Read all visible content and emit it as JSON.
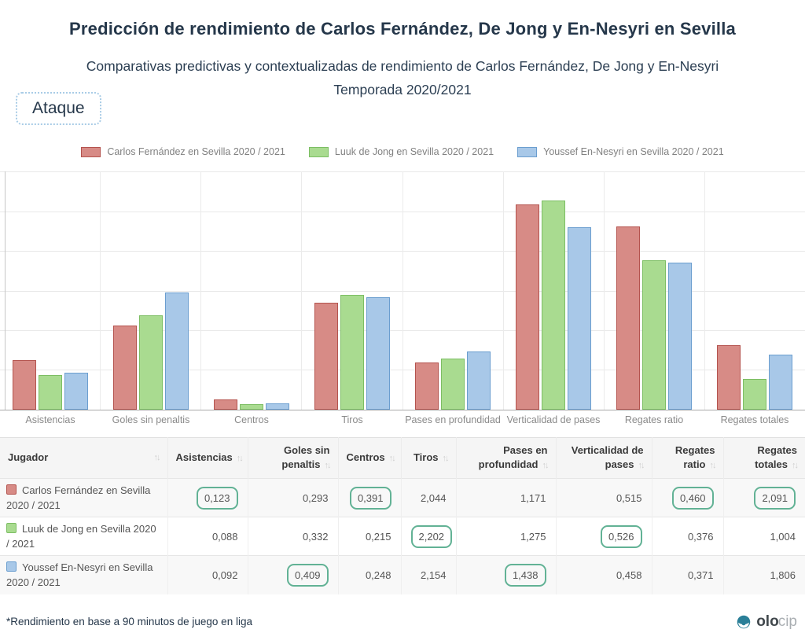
{
  "header": {
    "title": "Predicción de rendimiento de Carlos Fernández, De Jong y En-Nesyri en Sevilla",
    "subtitle_line1": "Comparativas predictivas y contextualizadas de rendimiento de Carlos Fernández, De Jong y En-Nesyri",
    "subtitle_line2": "Temporada 2020/2021",
    "category_tag": "Ataque"
  },
  "chart_data": {
    "type": "bar",
    "title": "",
    "xlabel": "",
    "ylabel": "",
    "grid": true,
    "legend_position": "top",
    "y_axis_labels_visible": false,
    "note": "Bar heights are normalized per metric (no y-axis tick labels shown); exact per-90 values are in the table below. height_pct = bar height as % of plot height.",
    "categories": [
      "Asistencias",
      "Goles sin penaltis",
      "Centros",
      "Tiros",
      "Pases en profundidad",
      "Verticalidad de pases",
      "Regates ratio",
      "Regates totales"
    ],
    "series": [
      {
        "name": "Carlos Fernández en Sevilla 2020 / 2021",
        "fill": "#D78B86",
        "border": "#B4534E",
        "values": [
          0.123,
          0.293,
          0.391,
          2.044,
          1.171,
          0.515,
          0.46,
          2.091
        ],
        "height_pct": [
          20.8,
          35.3,
          4.3,
          44.9,
          19.8,
          86.1,
          76.9,
          27.1
        ]
      },
      {
        "name": "Luuk de Jong en Sevilla 2020 / 2021",
        "fill": "#A9DB90",
        "border": "#7CBE63",
        "values": [
          0.088,
          0.332,
          0.215,
          2.202,
          1.275,
          0.526,
          0.376,
          1.004
        ],
        "height_pct": [
          14.5,
          39.6,
          2.3,
          48.2,
          21.5,
          87.8,
          62.7,
          12.9
        ]
      },
      {
        "name": "Youssef En-Nesyri en Sevilla 2020 / 2021",
        "fill": "#A8C8E8",
        "border": "#6B9ECF",
        "values": [
          0.092,
          0.409,
          0.248,
          2.154,
          1.438,
          0.458,
          0.371,
          1.806
        ],
        "height_pct": [
          15.5,
          49.2,
          2.7,
          47.2,
          24.4,
          76.6,
          61.7,
          23.1
        ]
      }
    ]
  },
  "table": {
    "sort_glyph": "↑↓",
    "columns": [
      "Jugador",
      "Asistencias",
      "Goles sin penaltis",
      "Centros",
      "Tiros",
      "Pases en profundidad",
      "Verticalidad de pases",
      "Regates ratio",
      "Regates totales"
    ],
    "rows": [
      {
        "player": "Carlos Fernández en Sevilla 2020 / 2021",
        "color": "#D78B86",
        "border": "#B4534E",
        "values": [
          "0,123",
          "0,293",
          "0,391",
          "2,044",
          "1,171",
          "0,515",
          "0,460",
          "2,091"
        ],
        "highlighted_columns": [
          "Asistencias",
          "Centros",
          "Regates ratio",
          "Regates totales"
        ]
      },
      {
        "player": "Luuk de Jong en Sevilla 2020 / 2021",
        "color": "#A9DB90",
        "border": "#7CBE63",
        "values": [
          "0,088",
          "0,332",
          "0,215",
          "2,202",
          "1,275",
          "0,526",
          "0,376",
          "1,004"
        ],
        "highlighted_columns": [
          "Tiros",
          "Verticalidad de pases"
        ]
      },
      {
        "player": "Youssef En-Nesyri en Sevilla 2020 / 2021",
        "color": "#A8C8E8",
        "border": "#6B9ECF",
        "values": [
          "0,092",
          "0,409",
          "0,248",
          "2,154",
          "1,438",
          "0,458",
          "0,371",
          "1,806"
        ],
        "highlighted_columns": [
          "Goles sin penaltis",
          "Pases en profundidad"
        ]
      }
    ]
  },
  "footer": {
    "note": "*Rendimiento en base a 90 minutos de juego en liga",
    "brand_bold": "olo",
    "brand_light": "cip"
  }
}
